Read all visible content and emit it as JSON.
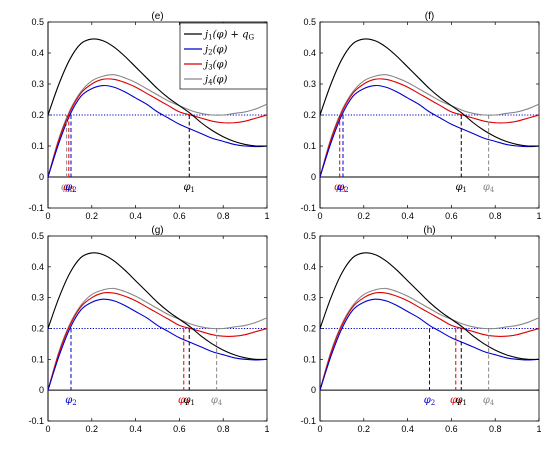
{
  "chart_data": [
    {
      "type": "line",
      "title": "(e)",
      "xlim": [
        0,
        1
      ],
      "ylim": [
        -0.1,
        0.5
      ],
      "xticks": [
        "0",
        "0.2",
        "0.4",
        "0.6",
        "0.8",
        "1"
      ],
      "yticks": [
        "-0.1",
        "0",
        "0.1",
        "0.2",
        "0.3",
        "0.4",
        "0.5"
      ],
      "reference_line": {
        "y": 0.2,
        "color": "#0000cc",
        "style": "dotted"
      },
      "legend": {
        "placement": "top-right",
        "entries": [
          {
            "base": "j",
            "sub": "1",
            "tail": "(φ) + q",
            "sub2": "G",
            "color": "#000000"
          },
          {
            "base": "j",
            "sub": "2",
            "tail": "(φ)",
            "color": "#0000cc"
          },
          {
            "base": "j",
            "sub": "3",
            "tail": "(φ)",
            "color": "#dd0000"
          },
          {
            "base": "j",
            "sub": "4",
            "tail": "(φ)",
            "color": "#888888"
          }
        ]
      },
      "markers": [
        {
          "label": "φ",
          "sub": "4",
          "x": 0.085,
          "y": 0.2,
          "color": "#888888"
        },
        {
          "label": "φ",
          "sub": "3",
          "x": 0.095,
          "y": 0.2,
          "color": "#dd0000"
        },
        {
          "label": "φ",
          "sub": "2",
          "x": 0.105,
          "y": 0.2,
          "color": "#0000cc"
        },
        {
          "label": "φ",
          "sub": "1",
          "x": 0.645,
          "y": 0.2,
          "color": "#000000"
        }
      ]
    },
    {
      "type": "line",
      "title": "(f)",
      "xlim": [
        0,
        1
      ],
      "ylim": [
        -0.1,
        0.5
      ],
      "xticks": [
        "0",
        "0.2",
        "0.4",
        "0.6",
        "0.8",
        "1"
      ],
      "yticks": [
        "-0.1",
        "0",
        "0.1",
        "0.2",
        "0.3",
        "0.4",
        "0.5"
      ],
      "reference_line": {
        "y": 0.2,
        "color": "#0000cc",
        "style": "dotted"
      },
      "markers": [
        {
          "label": "φ",
          "sub": "3",
          "x": 0.09,
          "y": 0.2,
          "color": "#dd0000"
        },
        {
          "label": "φ",
          "sub": "2",
          "x": 0.105,
          "y": 0.2,
          "color": "#0000cc"
        },
        {
          "label": "φ",
          "sub": "1",
          "x": 0.645,
          "y": 0.2,
          "color": "#000000"
        },
        {
          "label": "φ",
          "sub": "4",
          "x": 0.77,
          "y": 0.2,
          "color": "#888888"
        }
      ]
    },
    {
      "type": "line",
      "title": "(g)",
      "xlim": [
        0,
        1
      ],
      "ylim": [
        -0.1,
        0.5
      ],
      "xticks": [
        "0",
        "0.2",
        "0.4",
        "0.6",
        "0.8",
        "1"
      ],
      "yticks": [
        "-0.1",
        "0",
        "0.1",
        "0.2",
        "0.3",
        "0.4",
        "0.5"
      ],
      "reference_line": {
        "y": 0.2,
        "color": "#0000cc",
        "style": "dotted"
      },
      "markers": [
        {
          "label": "φ",
          "sub": "2",
          "x": 0.105,
          "y": 0.2,
          "color": "#0000cc"
        },
        {
          "label": "φ",
          "sub": "3",
          "x": 0.62,
          "y": 0.2,
          "color": "#dd0000"
        },
        {
          "label": "φ",
          "sub": "1",
          "x": 0.645,
          "y": 0.2,
          "color": "#000000"
        },
        {
          "label": "φ",
          "sub": "4",
          "x": 0.77,
          "y": 0.2,
          "color": "#888888"
        }
      ]
    },
    {
      "type": "line",
      "title": "(h)",
      "xlim": [
        0,
        1
      ],
      "ylim": [
        -0.1,
        0.5
      ],
      "xticks": [
        "0",
        "0.2",
        "0.4",
        "0.6",
        "0.8",
        "1"
      ],
      "yticks": [
        "-0.1",
        "0",
        "0.1",
        "0.2",
        "0.3",
        "0.4",
        "0.5"
      ],
      "reference_line": {
        "y": 0.2,
        "color": "#0000cc",
        "style": "dotted"
      },
      "markers": [
        {
          "label": "φ",
          "sub": "2",
          "x": 0.5,
          "y": 0.2,
          "color": "#0000cc"
        },
        {
          "label": "φ",
          "sub": "3",
          "x": 0.62,
          "y": 0.2,
          "color": "#dd0000"
        },
        {
          "label": "φ",
          "sub": "1",
          "x": 0.645,
          "y": 0.2,
          "color": "#000000"
        },
        {
          "label": "φ",
          "sub": "4",
          "x": 0.77,
          "y": 0.2,
          "color": "#888888"
        }
      ]
    }
  ],
  "series_points": {
    "x": [
      0,
      0.05,
      0.1,
      0.15,
      0.2,
      0.25,
      0.3,
      0.35,
      0.4,
      0.45,
      0.5,
      0.55,
      0.6,
      0.65,
      0.7,
      0.75,
      0.8,
      0.85,
      0.9,
      0.95,
      1.0
    ],
    "j1_plus_qG": [
      0.2,
      0.3,
      0.38,
      0.43,
      0.445,
      0.44,
      0.42,
      0.39,
      0.355,
      0.32,
      0.285,
      0.255,
      0.23,
      0.205,
      0.175,
      0.15,
      0.13,
      0.115,
      0.105,
      0.1,
      0.1
    ],
    "j2": [
      0,
      0.11,
      0.2,
      0.26,
      0.285,
      0.295,
      0.29,
      0.275,
      0.255,
      0.235,
      0.21,
      0.19,
      0.17,
      0.155,
      0.14,
      0.125,
      0.115,
      0.105,
      0.1,
      0.098,
      0.1
    ],
    "j3": [
      0,
      0.12,
      0.21,
      0.27,
      0.3,
      0.315,
      0.315,
      0.305,
      0.29,
      0.27,
      0.25,
      0.23,
      0.21,
      0.2,
      0.19,
      0.18,
      0.175,
      0.175,
      0.18,
      0.19,
      0.2
    ],
    "j4": [
      0,
      0.125,
      0.215,
      0.275,
      0.31,
      0.325,
      0.33,
      0.32,
      0.305,
      0.285,
      0.265,
      0.245,
      0.23,
      0.215,
      0.205,
      0.2,
      0.2,
      0.205,
      0.21,
      0.22,
      0.235
    ]
  },
  "colors": {
    "j1": "#000000",
    "j2": "#0000cc",
    "j3": "#dd0000",
    "j4": "#888888",
    "reference": "#0000cc"
  }
}
